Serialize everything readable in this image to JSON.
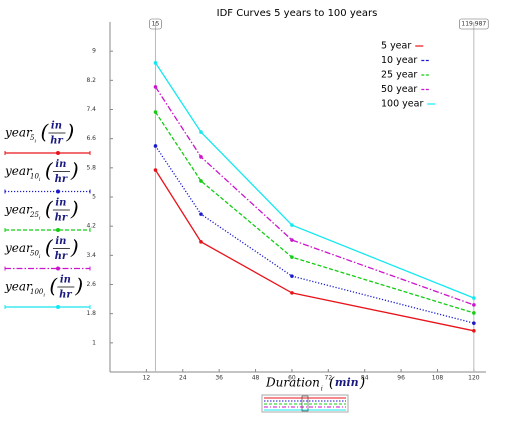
{
  "chart_data": {
    "type": "line",
    "title": "IDF Curves 5 years to 100 years",
    "x": [
      15,
      30,
      60,
      120
    ],
    "series": [
      {
        "name": "5 year",
        "color": "#e8141b",
        "line_style": "solid",
        "values": [
          5.74,
          3.77,
          2.37,
          1.33
        ]
      },
      {
        "name": "10 year",
        "color": "#1a1acc",
        "line_style": "dotted",
        "values": [
          6.4,
          4.53,
          2.83,
          1.54
        ]
      },
      {
        "name": "25 year",
        "color": "#14cc14",
        "line_style": "dashed",
        "values": [
          7.33,
          5.44,
          3.35,
          1.82
        ]
      },
      {
        "name": "50 year",
        "color": "#cc14cc",
        "line_style": "dashdot",
        "values": [
          8.02,
          6.1,
          3.82,
          2.04
        ]
      },
      {
        "name": "100 year",
        "color": "#14e8f0",
        "line_style": "solid",
        "values": [
          8.68,
          6.78,
          4.23,
          2.23
        ]
      }
    ],
    "y_labels": [
      {
        "var": "year",
        "sub": "5",
        "index": "i",
        "unit_num": "in",
        "unit_den": "hr"
      },
      {
        "var": "year",
        "sub": "10",
        "index": "i",
        "unit_num": "in",
        "unit_den": "hr"
      },
      {
        "var": "year",
        "sub": "25",
        "index": "i",
        "unit_num": "in",
        "unit_den": "hr"
      },
      {
        "var": "year",
        "sub": "50",
        "index": "i",
        "unit_num": "in",
        "unit_den": "hr"
      },
      {
        "var": "year",
        "sub": "100",
        "index": "i",
        "unit_num": "in",
        "unit_den": "hr"
      }
    ],
    "x_label": {
      "var": "Duration",
      "index": "i",
      "unit": "min"
    },
    "xmarkers": [
      15,
      119.987
    ],
    "xlim": [
      0,
      124
    ],
    "xticks": [
      12,
      24,
      36,
      48,
      60,
      72,
      84,
      96,
      108,
      120
    ],
    "ylim": [
      0.2,
      9.8
    ],
    "yticks": [
      1,
      1.8,
      2.6,
      3.4,
      4.2,
      5,
      5.8,
      6.6,
      7.4,
      8.2,
      9
    ],
    "legend": "upper-right",
    "grid": false
  }
}
